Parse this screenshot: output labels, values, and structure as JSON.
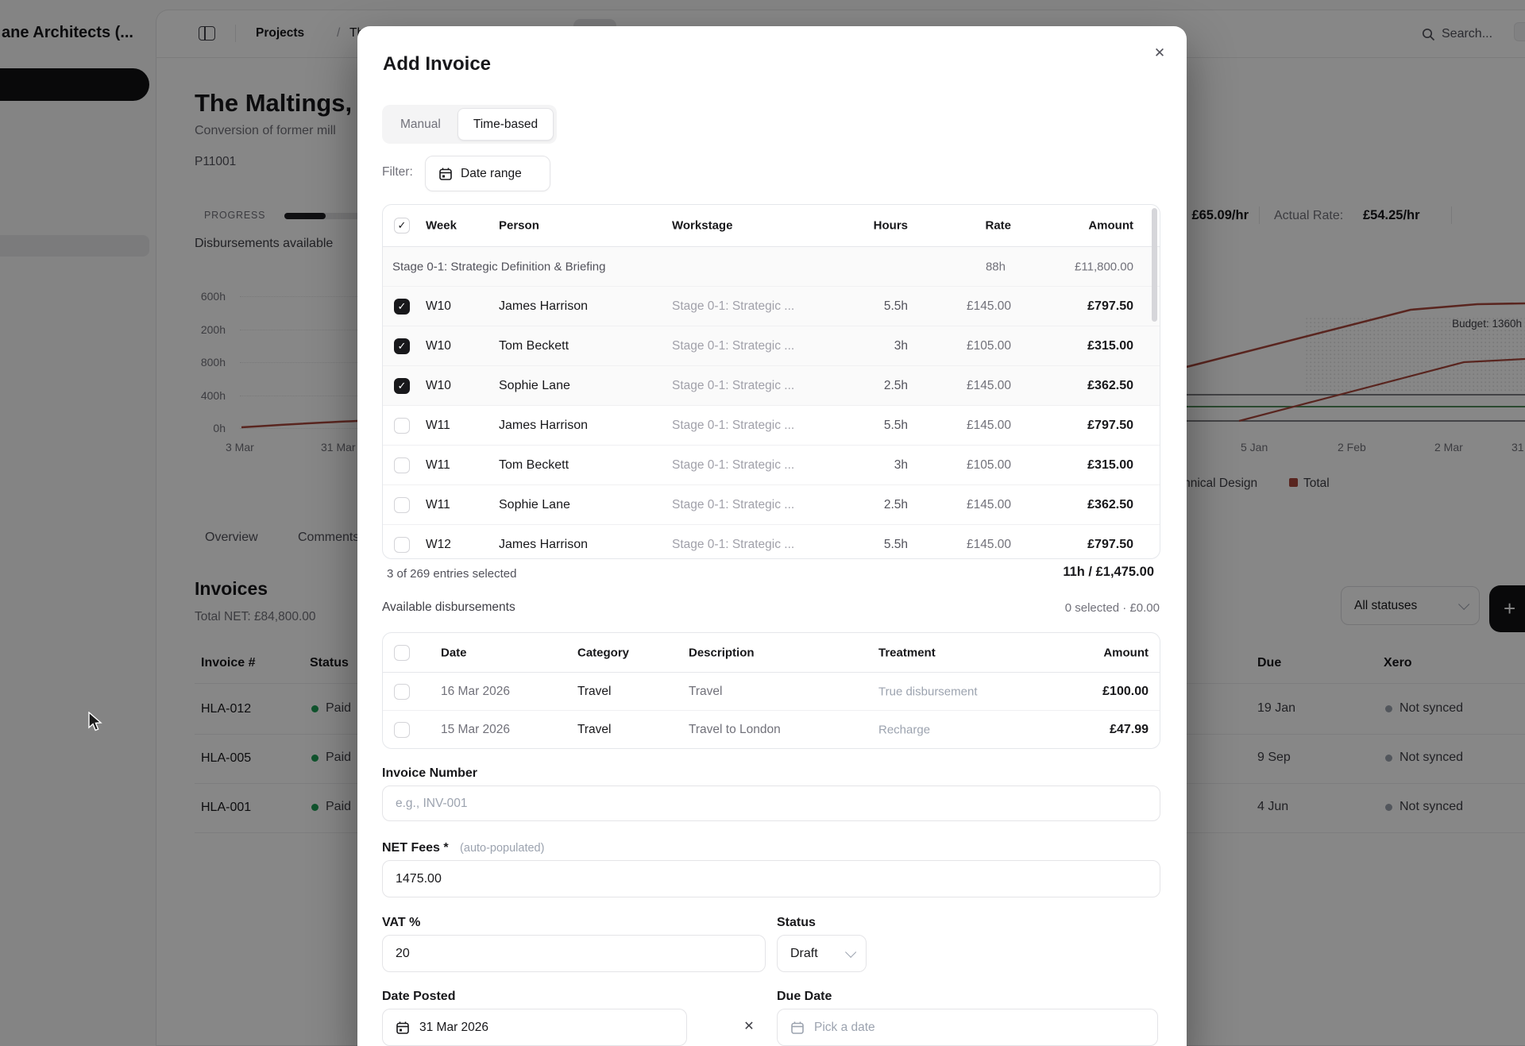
{
  "glyphs": {
    "check": "✓",
    "close": "✕",
    "plus": "+",
    "clear": "✕"
  },
  "colors": {
    "accent_red": "#a8473b",
    "green_line": "#3a7d44",
    "paid_dot": "#1f9d55",
    "gray_dot": "#9ca3af"
  },
  "background": {
    "sidebar": {
      "title": "ane Architects (..."
    },
    "header": {
      "breadcrumb_section": "Projects",
      "breadcrumb_sep": "/",
      "breadcrumb_page": "The Maltings",
      "search": "Search..."
    },
    "project": {
      "title": "The Maltings, Wa",
      "subtitle": "Conversion of former mill",
      "code": "P11001",
      "progress_label": "PROGRESS",
      "note": "Disbursements available",
      "rate_value": "£65.09/hr",
      "actual_rate_label": "Actual Rate:",
      "actual_rate_value": "£54.25/hr"
    },
    "chart": {
      "y_labels": [
        "600h",
        "200h",
        "800h",
        "400h",
        "0h"
      ],
      "x_labels_left": [
        "3 Mar",
        "31 Mar"
      ],
      "x_labels_right": [
        "5 Jan",
        "2 Feb",
        "2 Mar",
        "31"
      ],
      "budget_label": "Budget: 1360h",
      "legend_left": "Technical Design",
      "legend_total": "Total"
    },
    "tabs": [
      "Overview",
      "Comments"
    ],
    "invoices": {
      "heading": "Invoices",
      "total": "Total NET: £84,800.00",
      "filter": "All statuses",
      "columns": {
        "number": "Invoice #",
        "status": "Status",
        "due": "Due",
        "xero": "Xero"
      },
      "rows": [
        {
          "number": "HLA-012",
          "status": "Paid",
          "due": "19 Jan",
          "xero": "Not synced"
        },
        {
          "number": "HLA-005",
          "status": "Paid",
          "due": "9 Sep",
          "xero": "Not synced"
        },
        {
          "number": "HLA-001",
          "status": "Paid",
          "due": "4 Jun",
          "xero": "Not synced"
        }
      ]
    }
  },
  "modal": {
    "title": "Add Invoice",
    "tabs": [
      {
        "label": "Manual",
        "active": false
      },
      {
        "label": "Time-based",
        "active": true
      }
    ],
    "filter_label": "Filter:",
    "date_range_button": "Date range",
    "time_table": {
      "columns": [
        "Week",
        "Person",
        "Workstage",
        "Hours",
        "Rate",
        "Amount"
      ],
      "group": {
        "label": "Stage 0-1: Strategic Definition & Briefing",
        "hours": "88h",
        "amount": "£11,800.00"
      },
      "rows": [
        {
          "checked": true,
          "week": "W10",
          "person": "James Harrison",
          "workstage": "Stage 0-1: Strategic ...",
          "hours": "5.5h",
          "rate": "£145.00",
          "amount": "£797.50"
        },
        {
          "checked": true,
          "week": "W10",
          "person": "Tom Beckett",
          "workstage": "Stage 0-1: Strategic ...",
          "hours": "3h",
          "rate": "£105.00",
          "amount": "£315.00"
        },
        {
          "checked": true,
          "week": "W10",
          "person": "Sophie Lane",
          "workstage": "Stage 0-1: Strategic ...",
          "hours": "2.5h",
          "rate": "£145.00",
          "amount": "£362.50"
        },
        {
          "checked": false,
          "week": "W11",
          "person": "James Harrison",
          "workstage": "Stage 0-1: Strategic ...",
          "hours": "5.5h",
          "rate": "£145.00",
          "amount": "£797.50"
        },
        {
          "checked": false,
          "week": "W11",
          "person": "Tom Beckett",
          "workstage": "Stage 0-1: Strategic ...",
          "hours": "3h",
          "rate": "£105.00",
          "amount": "£315.00"
        },
        {
          "checked": false,
          "week": "W11",
          "person": "Sophie Lane",
          "workstage": "Stage 0-1: Strategic ...",
          "hours": "2.5h",
          "rate": "£145.00",
          "amount": "£362.50"
        },
        {
          "checked": false,
          "week": "W12",
          "person": "James Harrison",
          "workstage": "Stage 0-1: Strategic ...",
          "hours": "5.5h",
          "rate": "£145.00",
          "amount": "£797.50"
        }
      ],
      "summary_left": "3 of 269 entries selected",
      "summary_right": "11h / £1,475.00"
    },
    "disbursements": {
      "heading": "Available disbursements",
      "selected": "0 selected · £0.00",
      "columns": [
        "Date",
        "Category",
        "Description",
        "Treatment",
        "Amount"
      ],
      "rows": [
        {
          "date": "16 Mar 2026",
          "category": "Travel",
          "description": "Travel",
          "treatment": "True disbursement",
          "amount": "£100.00"
        },
        {
          "date": "15 Mar 2026",
          "category": "Travel",
          "description": "Travel to London",
          "treatment": "Recharge",
          "amount": "£47.99"
        }
      ]
    },
    "form": {
      "invoice_number_label": "Invoice Number",
      "invoice_number_placeholder": "e.g., INV-001",
      "net_fees_label": "NET Fees *",
      "net_fees_hint": "(auto-populated)",
      "net_fees_value": "1475.00",
      "vat_label": "VAT %",
      "vat_value": "20",
      "status_label": "Status",
      "status_value": "Draft",
      "date_posted_label": "Date Posted",
      "date_posted_value": "31 Mar 2026",
      "due_date_label": "Due Date",
      "due_date_placeholder": "Pick a date"
    }
  }
}
